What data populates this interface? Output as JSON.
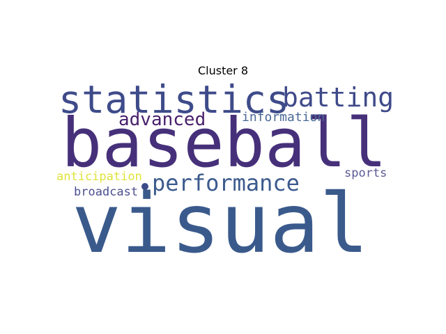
{
  "title": "Cluster 8",
  "words": [
    {
      "id": "visual",
      "text": "visual",
      "color": "#3a5a8c"
    },
    {
      "id": "baseball",
      "text": "baseball",
      "color": "#46307a"
    },
    {
      "id": "statistics",
      "text": "statistics",
      "color": "#3e4b8a"
    },
    {
      "id": "batting",
      "text": "batting",
      "color": "#3f4a8a"
    },
    {
      "id": "performance",
      "text": "performance",
      "color": "#3b5a8d"
    },
    {
      "id": "advanced",
      "text": "advanced",
      "color": "#481f6b"
    },
    {
      "id": "information",
      "text": "information",
      "color": "#4a6896"
    },
    {
      "id": "anticipation",
      "text": "anticipation",
      "color": "#dfe33a"
    },
    {
      "id": "broadcast",
      "text": "broadcast",
      "color": "#4b4f8e"
    },
    {
      "id": "sports",
      "text": "sports",
      "color": "#5b5a94"
    }
  ],
  "dot_color": "#3b4b88"
}
